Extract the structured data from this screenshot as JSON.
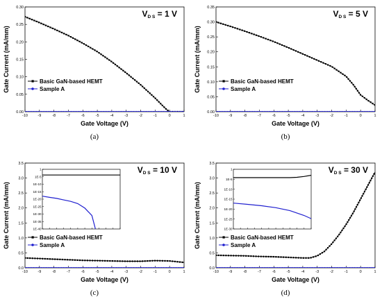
{
  "chart_data": [
    {
      "type": "scatter",
      "panel_label": "(a)",
      "annotation": "V_DS = 1 V",
      "annotation_main": "V",
      "annotation_sub": "D S",
      "annotation_rest": " = 1 V",
      "xlabel": "Gate Voltage (V)",
      "ylabel": "Gate Current (mA/mm)",
      "xlim": [
        -10,
        1
      ],
      "ylim": [
        0,
        0.3
      ],
      "xticks": [
        "-10",
        "-9",
        "-8",
        "-7",
        "-6",
        "-5",
        "-4",
        "-3",
        "-2",
        "-1",
        "0",
        "1"
      ],
      "yticks": [
        "0.00",
        "0.05",
        "0.10",
        "0.15",
        "0.20",
        "0.25",
        "0.30"
      ],
      "legend": [
        "Basic GaN-based HEMT",
        "Sample A"
      ],
      "series": [
        {
          "name": "Basic GaN-based HEMT",
          "color": "#000000",
          "x": [
            -10,
            -9,
            -8,
            -7,
            -6,
            -5,
            -4,
            -3,
            -2,
            -1,
            -0.5,
            -0.2,
            0,
            1
          ],
          "y": [
            0.272,
            0.255,
            0.237,
            0.218,
            0.196,
            0.172,
            0.143,
            0.111,
            0.077,
            0.039,
            0.018,
            0.006,
            0.0,
            0.0
          ]
        },
        {
          "name": "Sample A",
          "color": "#1f1fcf",
          "x": [
            -10,
            1
          ],
          "y": [
            0.0,
            0.0
          ]
        }
      ]
    },
    {
      "type": "scatter",
      "panel_label": "(b)",
      "annotation_main": "V",
      "annotation_sub": "D S",
      "annotation_rest": " = 5 V",
      "xlabel": "Gate Voltage (V)",
      "ylabel": "Gate Current (mA/mm)",
      "xlim": [
        -10,
        1
      ],
      "ylim": [
        0,
        0.35
      ],
      "xticks": [
        "-10",
        "-9",
        "-8",
        "-7",
        "-6",
        "-5",
        "-4",
        "-3",
        "-2",
        "-1",
        "0",
        "1"
      ],
      "yticks": [
        "0.00",
        "0.05",
        "0.10",
        "0.15",
        "0.20",
        "0.25",
        "0.30",
        "0.35"
      ],
      "legend": [
        "Basic GaN-based HEMT",
        "Sample A"
      ],
      "series": [
        {
          "name": "Basic GaN-based HEMT",
          "color": "#000000",
          "x": [
            -10,
            -9,
            -8,
            -7,
            -6,
            -5,
            -4,
            -3,
            -2,
            -1,
            -0.5,
            0,
            0.5,
            1
          ],
          "y": [
            0.3,
            0.285,
            0.269,
            0.252,
            0.234,
            0.214,
            0.193,
            0.172,
            0.151,
            0.118,
            0.09,
            0.056,
            0.038,
            0.022
          ]
        },
        {
          "name": "Sample A",
          "color": "#1f1fcf",
          "x": [
            -10,
            1
          ],
          "y": [
            0.0,
            0.0
          ]
        }
      ]
    },
    {
      "type": "scatter",
      "panel_label": "(c)",
      "annotation_main": "V",
      "annotation_sub": "D S",
      "annotation_rest": " = 10 V",
      "xlabel": "Gate Voltage (V)",
      "ylabel": "Gate Current (mA/mm)",
      "xlim": [
        -10,
        1
      ],
      "ylim": [
        0,
        3.5
      ],
      "xticks": [
        "-10",
        "-9",
        "-8",
        "-7",
        "-6",
        "-5",
        "-4",
        "-3",
        "-2",
        "-1",
        "0",
        "1"
      ],
      "yticks": [
        "0.0",
        "0.5",
        "1.0",
        "1.5",
        "2.0",
        "2.5",
        "3.0",
        "3.5"
      ],
      "legend": [
        "Basic GaN-based HEMT",
        "Sample A"
      ],
      "series": [
        {
          "name": "Basic GaN-based HEMT",
          "color": "#000000",
          "x": [
            -10,
            -9,
            -8,
            -7,
            -6,
            -5,
            -4,
            -3,
            -2,
            -1,
            0,
            1
          ],
          "y": [
            0.33,
            0.31,
            0.29,
            0.27,
            0.25,
            0.24,
            0.23,
            0.22,
            0.22,
            0.24,
            0.23,
            0.18
          ]
        },
        {
          "name": "Sample A",
          "color": "#1f1fcf",
          "x": [
            -10,
            1
          ],
          "y": [
            0.0,
            0.0
          ]
        }
      ],
      "inset": {
        "yticks": [
          "1",
          "1E-5",
          "1E-10",
          "1E-15",
          "1E-20",
          "1E-25",
          "1E-30",
          "1E-35",
          "1E-40"
        ],
        "ylog_exponents": [
          0,
          -40
        ],
        "xlim": [
          -10,
          1
        ],
        "series": [
          {
            "name": "Basic GaN-based HEMT",
            "color": "#000000",
            "x": [
              -10,
              -5,
              0,
              1
            ],
            "y_exp": [
              -3.8,
              -3.8,
              -3.8,
              -3.8
            ]
          },
          {
            "name": "Sample A",
            "color": "#1f1fcf",
            "x": [
              -10,
              -9,
              -8,
              -7,
              -6,
              -5,
              -4,
              -3,
              -2.5
            ],
            "y_exp": [
              -18.0,
              -18.8,
              -19.5,
              -20.5,
              -21.5,
              -23.0,
              -26.0,
              -31.0,
              -40.0
            ]
          }
        ]
      }
    },
    {
      "type": "scatter",
      "panel_label": "(d)",
      "annotation_main": "V",
      "annotation_sub": "D S",
      "annotation_rest": " = 30 V",
      "xlabel": "Gate Voltage (V)",
      "ylabel": "Gate Current (mA/mm)",
      "xlim": [
        -10,
        1
      ],
      "ylim": [
        0,
        3.5
      ],
      "xticks": [
        "-10",
        "-9",
        "-8",
        "-7",
        "-6",
        "-5",
        "-4",
        "-3",
        "-2",
        "-1",
        "0",
        "1"
      ],
      "yticks": [
        "0.0",
        "0.5",
        "1.0",
        "1.5",
        "2.0",
        "2.5",
        "3.0",
        "3.5"
      ],
      "legend": [
        "Basic GaN-based HEMT",
        "Sample A"
      ],
      "series": [
        {
          "name": "Basic GaN-based HEMT",
          "color": "#000000",
          "x": [
            -10,
            -9,
            -8,
            -7,
            -6,
            -5,
            -4,
            -3.5,
            -3,
            -2.5,
            -2,
            -1.5,
            -1,
            -0.5,
            0,
            0.5,
            1
          ],
          "y": [
            0.42,
            0.41,
            0.4,
            0.38,
            0.37,
            0.35,
            0.33,
            0.33,
            0.4,
            0.55,
            0.8,
            1.1,
            1.45,
            1.85,
            2.3,
            2.75,
            3.2
          ]
        },
        {
          "name": "Sample A",
          "color": "#1f1fcf",
          "x": [
            -10,
            1
          ],
          "y": [
            0.0,
            0.0
          ]
        }
      ],
      "inset": {
        "yticks": [
          "1",
          "1E-5",
          "1E-10",
          "1E-15",
          "1E-20",
          "1E-25",
          "1E-30"
        ],
        "ylog_exponents": [
          0,
          -30
        ],
        "xlim": [
          -10,
          1
        ],
        "series": [
          {
            "name": "Basic GaN-based HEMT",
            "color": "#000000",
            "x": [
              -10,
              -5,
              -2,
              -1,
              0,
              1
            ],
            "y_exp": [
              -4.2,
              -4.2,
              -4.2,
              -4.0,
              -3.6,
              -3.0
            ]
          },
          {
            "name": "Sample A",
            "color": "#1f1fcf",
            "x": [
              -10,
              -8,
              -6,
              -4,
              -2,
              0,
              1
            ],
            "y_exp": [
              -17.0,
              -17.6,
              -18.3,
              -19.3,
              -20.8,
              -23.2,
              -24.8
            ]
          }
        ]
      }
    }
  ]
}
